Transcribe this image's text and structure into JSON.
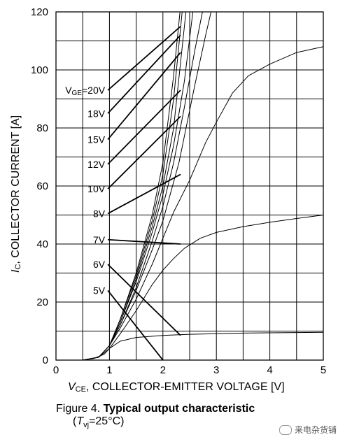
{
  "chart_data": {
    "type": "line",
    "xlabel_sym": "V",
    "xlabel_sub": "CE",
    "xlabel_text": ", COLLECTOR-EMITTER VOLTAGE [V]",
    "ylabel_sym": "I",
    "ylabel_sub": "C",
    "ylabel_text": ", COLLECTOR CURRENT [A]",
    "xlim": [
      0,
      5
    ],
    "ylim": [
      0,
      120
    ],
    "xticks": [
      0,
      1,
      2,
      3,
      4,
      5
    ],
    "yticks": [
      0,
      20,
      40,
      60,
      80,
      100,
      120
    ],
    "grid": true,
    "label_prefix": "V",
    "label_prefix_sub": "GE",
    "series": [
      {
        "name": "5V",
        "x": [
          0.5,
          0.7,
          0.9,
          1.0,
          1.2,
          1.5,
          2.0,
          2.5,
          3.0,
          3.5,
          4.0,
          4.5,
          5.0
        ],
        "y": [
          0,
          0.5,
          2,
          4,
          6.5,
          7.8,
          8.5,
          8.9,
          9.1,
          9.3,
          9.4,
          9.5,
          9.6
        ]
      },
      {
        "name": "6V",
        "x": [
          0.5,
          0.8,
          1.0,
          1.2,
          1.5,
          1.8,
          2.0,
          2.2,
          2.4,
          2.7,
          3.0,
          3.5,
          4.0,
          4.5,
          5.0
        ],
        "y": [
          0,
          1,
          4,
          9,
          17,
          26,
          31,
          35,
          38.5,
          42,
          44,
          46,
          47.5,
          48.8,
          50
        ]
      },
      {
        "name": "7V",
        "x": [
          0.5,
          0.8,
          1.0,
          1.2,
          1.5,
          1.8,
          2.0,
          2.2,
          2.5,
          2.8,
          3.0,
          3.3,
          3.6,
          4.0,
          4.5,
          5.0
        ],
        "y": [
          0,
          1,
          5,
          11,
          21,
          33,
          42,
          51,
          62,
          75,
          82,
          92,
          98,
          102,
          106,
          108
        ]
      },
      {
        "name": "8V",
        "x": [
          0.5,
          0.8,
          1.0,
          1.2,
          1.5,
          1.8,
          2.0,
          2.3,
          2.6,
          2.8,
          2.9
        ],
        "y": [
          0,
          1,
          5,
          12,
          24,
          38,
          48,
          68,
          95,
          112,
          120
        ]
      },
      {
        "name": "10V",
        "x": [
          0.5,
          0.8,
          1.0,
          1.2,
          1.5,
          1.8,
          2.0,
          2.2,
          2.4,
          2.6,
          2.74
        ],
        "y": [
          0,
          1,
          5,
          12,
          25,
          41,
          53,
          68,
          87,
          107,
          120
        ]
      },
      {
        "name": "12V",
        "x": [
          0.5,
          0.8,
          1.0,
          1.2,
          1.5,
          1.8,
          2.0,
          2.2,
          2.4,
          2.56
        ],
        "y": [
          0,
          1,
          5,
          13,
          27,
          44,
          57,
          74,
          96,
          120
        ]
      },
      {
        "name": "15V",
        "x": [
          0.5,
          0.8,
          1.0,
          1.2,
          1.5,
          1.8,
          2.0,
          2.2,
          2.43
        ],
        "y": [
          0,
          1,
          5,
          13,
          28,
          46,
          60,
          80,
          120
        ]
      },
      {
        "name": "18V",
        "x": [
          0.5,
          0.8,
          1.0,
          1.2,
          1.5,
          1.8,
          2.0,
          2.2,
          2.36
        ],
        "y": [
          0,
          1,
          5,
          14,
          29,
          48,
          64,
          90,
          120
        ]
      },
      {
        "name": "20V",
        "x": [
          0.5,
          0.8,
          1.0,
          1.2,
          1.5,
          1.8,
          2.0,
          2.2,
          2.32
        ],
        "y": [
          0,
          1,
          5,
          14,
          30,
          50,
          68,
          98,
          120
        ]
      }
    ],
    "labels": [
      {
        "text": "20V",
        "pre": true,
        "lx": 0.97,
        "ly": 93,
        "tx": 2.33,
        "ty": 115
      },
      {
        "text": "18V",
        "pre": false,
        "lx": 0.97,
        "ly": 85,
        "tx": 2.33,
        "ty": 112
      },
      {
        "text": "15V",
        "pre": false,
        "lx": 0.97,
        "ly": 76,
        "tx": 2.33,
        "ty": 106
      },
      {
        "text": "12V",
        "pre": false,
        "lx": 0.97,
        "ly": 67.5,
        "tx": 2.33,
        "ty": 93
      },
      {
        "text": "10V",
        "pre": false,
        "lx": 0.97,
        "ly": 59,
        "tx": 2.33,
        "ty": 84
      },
      {
        "text": "8V",
        "pre": false,
        "lx": 0.97,
        "ly": 50.5,
        "tx": 2.33,
        "ty": 64
      },
      {
        "text": "7V",
        "pre": false,
        "lx": 0.97,
        "ly": 41.5,
        "tx": 2.33,
        "ty": 40
      },
      {
        "text": "6V",
        "pre": false,
        "lx": 0.97,
        "ly": 33,
        "tx": 2.33,
        "ty": 8.5
      },
      {
        "text": "5V",
        "pre": false,
        "lx": 0.97,
        "ly": 24,
        "tx": 2.0,
        "ty": 0
      }
    ]
  },
  "caption": {
    "prefix": "Figure 4. ",
    "title": "Typical output characteristic",
    "cond_open": "(",
    "cond_sym": "T",
    "cond_sub": "vj",
    "cond_value": "=25°C)"
  },
  "watermark": "来电杂货铺"
}
